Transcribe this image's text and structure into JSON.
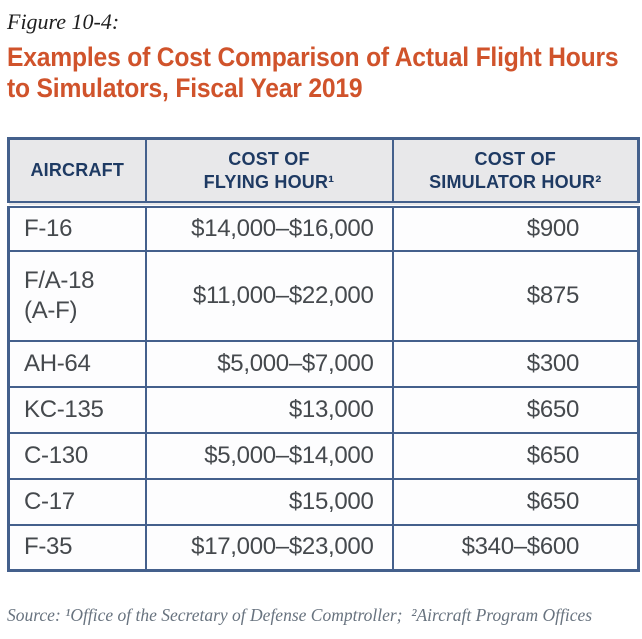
{
  "figure_label": "Figure 10-4:",
  "title_lines": [
    "Examples of Cost Comparison of Actual Flight Hours",
    "to Simulators, Fiscal Year 2019"
  ],
  "colors": {
    "accent_orange": "#d0532b",
    "header_text_navy": "#1e3a63",
    "table_border_blue": "#44608c",
    "header_bg_gray": "#e8e8ea",
    "cell_text_gray": "#45494d",
    "source_text_slate": "#68737f"
  },
  "table": {
    "columns": [
      {
        "id": "aircraft",
        "lines": [
          "AIRCRAFT"
        ]
      },
      {
        "id": "flying-hour-cost",
        "lines": [
          "COST OF",
          "FLYING HOUR¹"
        ]
      },
      {
        "id": "simulator-hour-cost",
        "lines": [
          "COST OF",
          "SIMULATOR HOUR²"
        ]
      }
    ],
    "rows": [
      {
        "aircraft": [
          "F-16"
        ],
        "flying": "$14,000–$16,000",
        "simulator": "$900"
      },
      {
        "aircraft": [
          "F/A-18",
          "(A-F)"
        ],
        "flying": "$11,000–$22,000",
        "simulator": "$875"
      },
      {
        "aircraft": [
          "AH-64"
        ],
        "flying": "$5,000–$7,000",
        "simulator": "$300"
      },
      {
        "aircraft": [
          "KC-135"
        ],
        "flying": "$13,000",
        "simulator": "$650"
      },
      {
        "aircraft": [
          "C-130"
        ],
        "flying": "$5,000–$14,000",
        "simulator": "$650"
      },
      {
        "aircraft": [
          "C-17"
        ],
        "flying": "$15,000",
        "simulator": "$650"
      },
      {
        "aircraft": [
          "F-35"
        ],
        "flying": "$17,000–$23,000",
        "simulator": "$340–$600"
      }
    ]
  },
  "source_note": "Source: ¹Office of the Secretary of Defense Comptroller;  ²Aircraft Program Offices",
  "chart_data": {
    "type": "table",
    "title": "Examples of Cost Comparison of Actual Flight Hours to Simulators, Fiscal Year 2019",
    "columns": [
      "AIRCRAFT",
      "COST OF FLYING HOUR¹",
      "COST OF SIMULATOR HOUR²"
    ],
    "rows": [
      [
        "F-16",
        "$14,000–$16,000",
        "$900"
      ],
      [
        "F/A-18 (A-F)",
        "$11,000–$22,000",
        "$875"
      ],
      [
        "AH-64",
        "$5,000–$7,000",
        "$300"
      ],
      [
        "KC-135",
        "$13,000",
        "$650"
      ],
      [
        "C-130",
        "$5,000–$14,000",
        "$650"
      ],
      [
        "C-17",
        "$15,000",
        "$650"
      ],
      [
        "F-35",
        "$17,000–$23,000",
        "$340–$600"
      ]
    ]
  }
}
